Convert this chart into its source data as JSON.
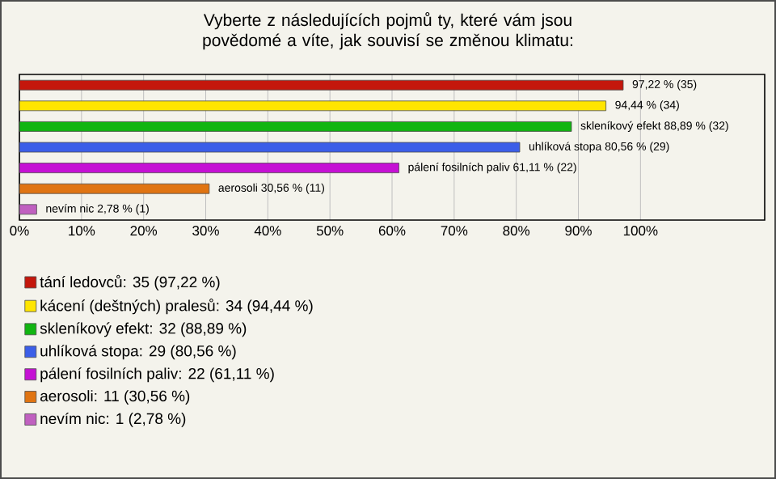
{
  "chart_data": {
    "type": "bar",
    "orientation": "horizontal",
    "title": "Vyberte z následujících pojmů ty, které vám jsou povědomé a víte, jak souvisí se změnou klimatu:",
    "categories": [
      null
    ],
    "series": [
      {
        "name": "tání ledovců: 35 (97,22 %)",
        "color": "#c4170c",
        "values": [
          97.22
        ],
        "value_labels": [
          "97,22 % (35)"
        ]
      },
      {
        "name": "kácení (deštných) pralesů: 34 (94,44 %)",
        "color": "#ffe500",
        "values": [
          94.44
        ],
        "value_labels": [
          "94,44 % (34)"
        ]
      },
      {
        "name": "skleníkový efekt: 32 (88,89 %)",
        "color": "#11b511",
        "values": [
          88.89
        ],
        "value_labels": [
          "skleníkový efekt 88,89 % (32)"
        ]
      },
      {
        "name": "uhlíková stopa: 29 (80,56 %)",
        "color": "#3b5ee8",
        "values": [
          80.56
        ],
        "value_labels": [
          "uhlíková stopa 80,56 % (29)"
        ]
      },
      {
        "name": "pálení fosilních paliv: 22 (61,11 %)",
        "color": "#c511d4",
        "values": [
          61.11
        ],
        "value_labels": [
          "pálení fosilních paliv 61,11 % (22)"
        ]
      },
      {
        "name": "aerosoli: 11 (30,56 %)",
        "color": "#e07412",
        "values": [
          30.56
        ],
        "value_labels": [
          "aerosoli 30,56 % (11)"
        ]
      },
      {
        "name": "nevím nic: 1 (2,78 %)",
        "color": "#c060c0",
        "values": [
          2.78
        ],
        "value_labels": [
          "nevím nic 2,78 % (1)"
        ]
      }
    ],
    "xlim": [
      0,
      120
    ],
    "xticks": [
      {
        "value": 0,
        "label": "0%"
      },
      {
        "value": 10,
        "label": "10%"
      },
      {
        "value": 20,
        "label": "20%"
      },
      {
        "value": 30,
        "label": "30%"
      },
      {
        "value": 40,
        "label": "40%"
      },
      {
        "value": 50,
        "label": "50%"
      },
      {
        "value": 60,
        "label": "60%"
      },
      {
        "value": 70,
        "label": "70%"
      },
      {
        "value": 80,
        "label": "80%"
      },
      {
        "value": 90,
        "label": "90%"
      },
      {
        "value": 100,
        "label": "100%"
      }
    ],
    "grid": "x",
    "legend": "bottom"
  }
}
